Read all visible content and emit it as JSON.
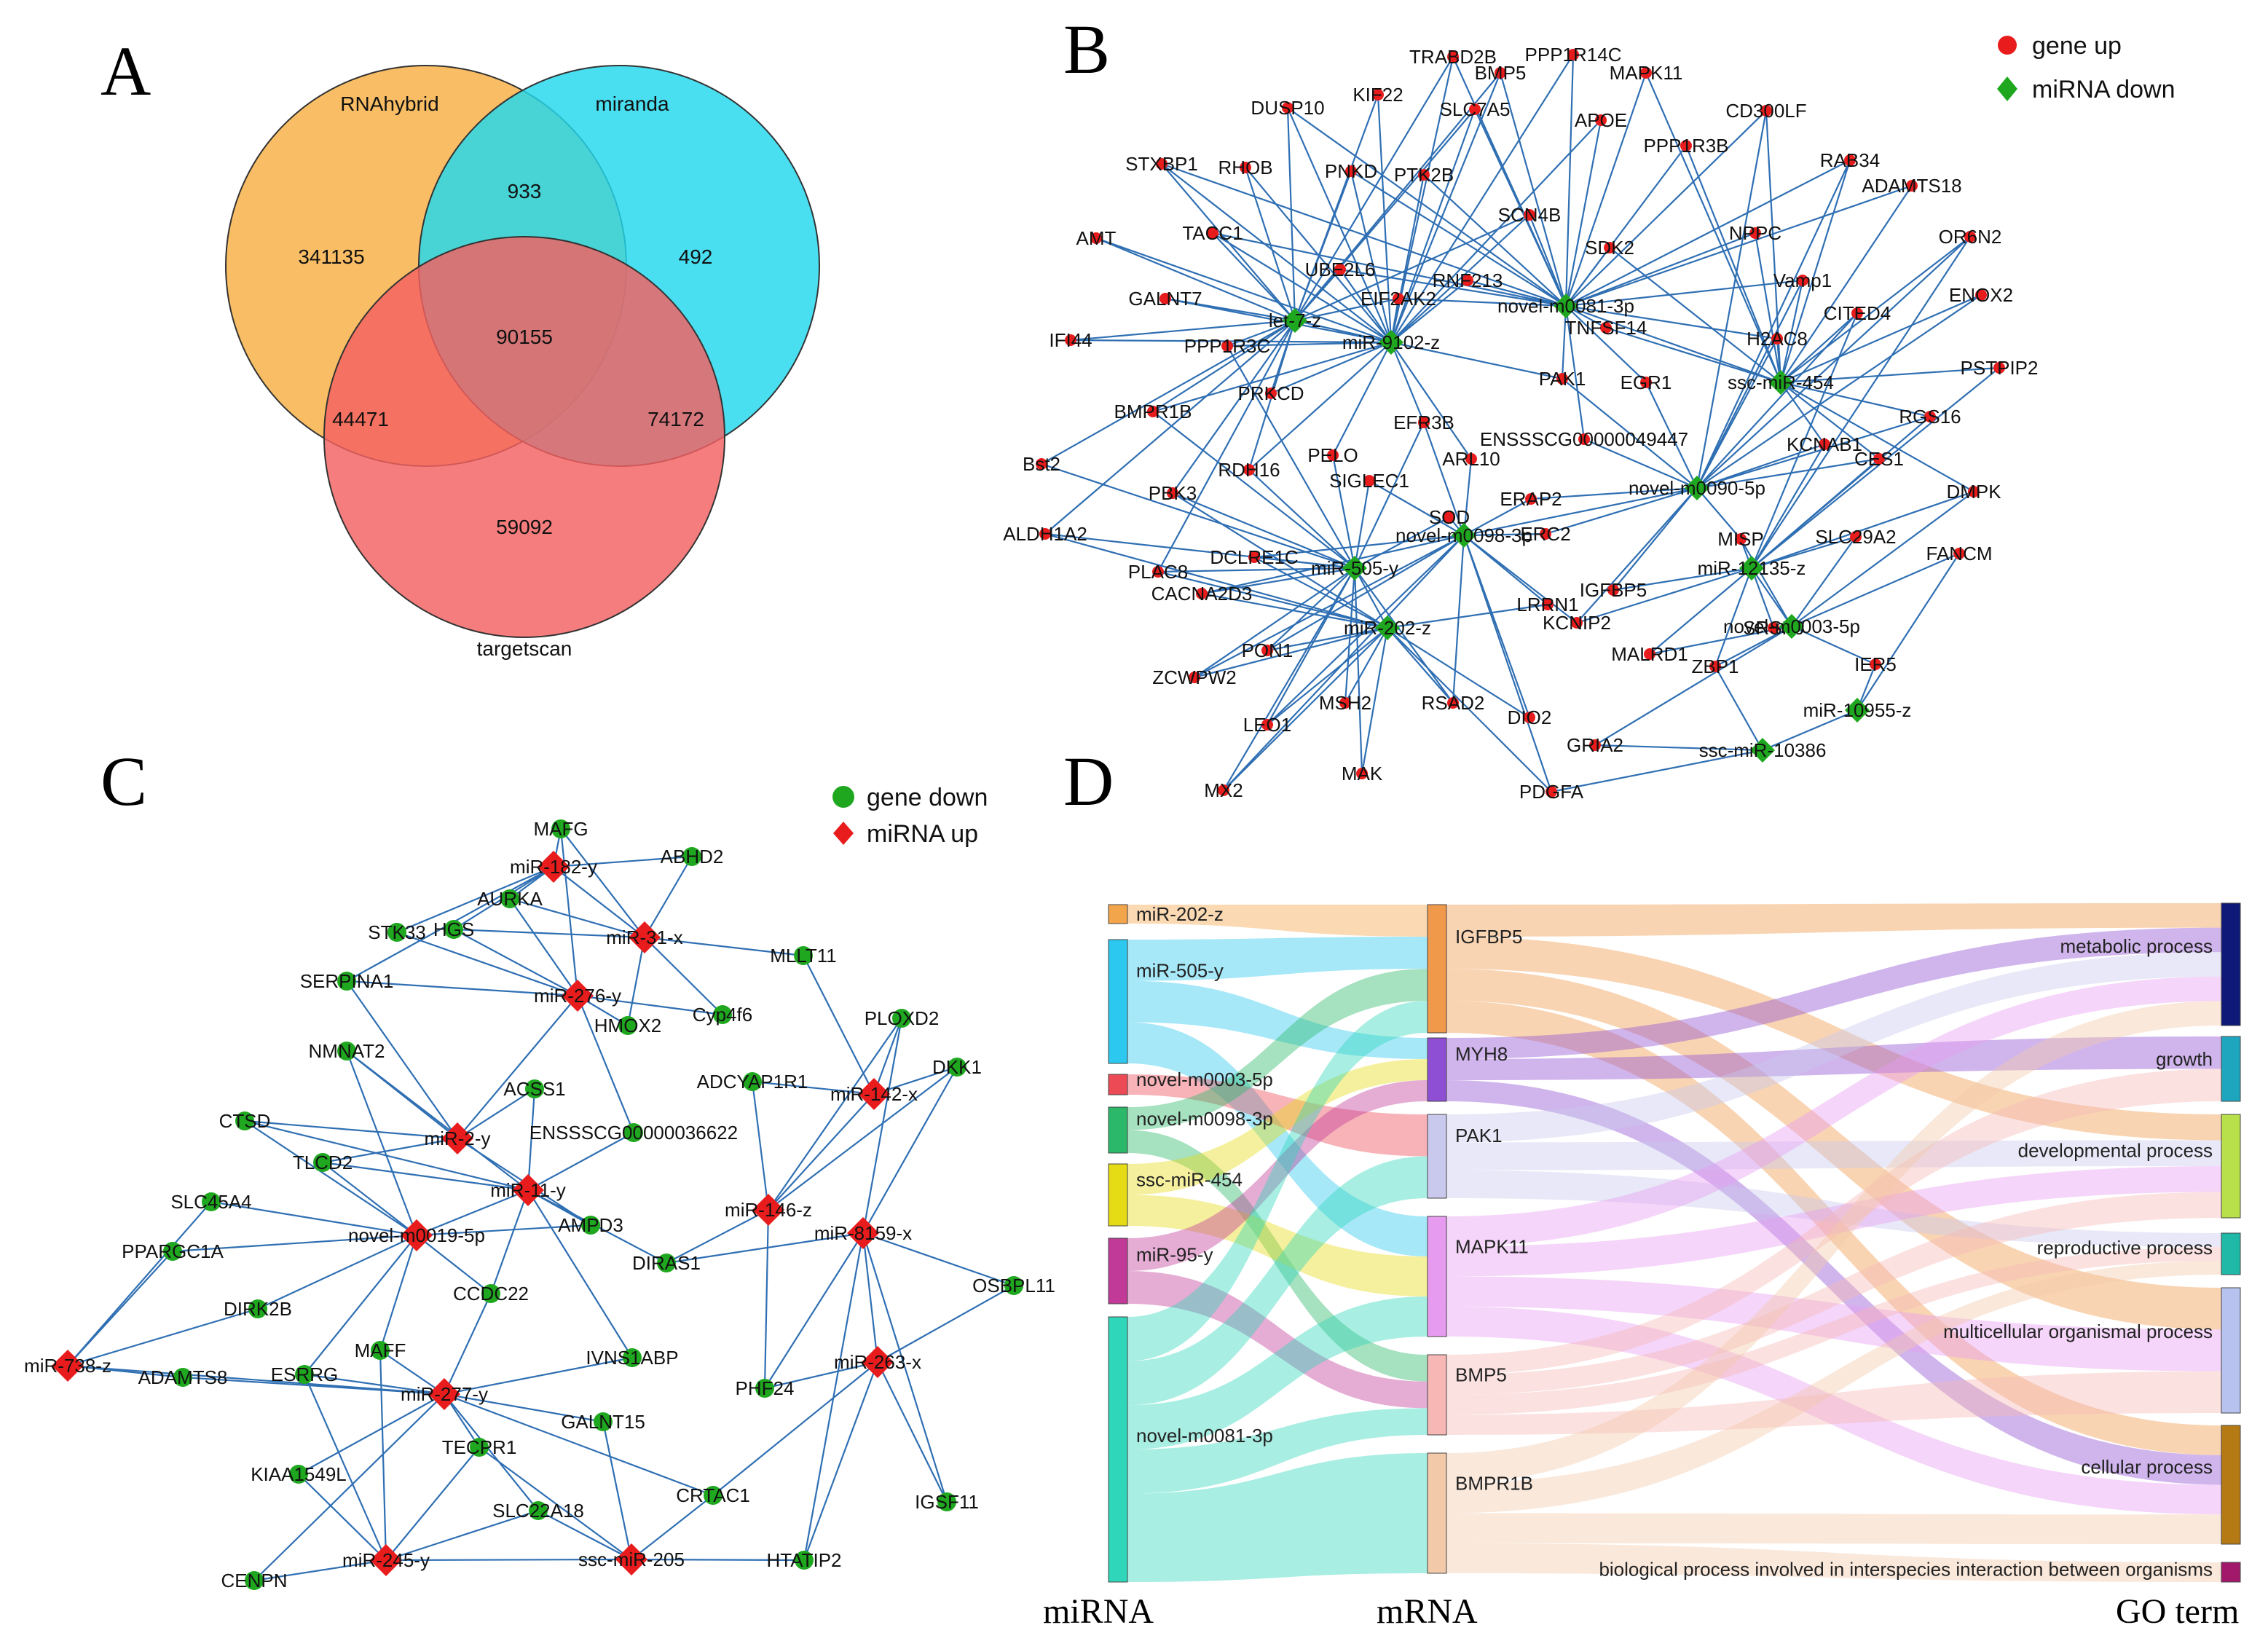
{
  "panels": {
    "a": "A",
    "b": "B",
    "c": "C",
    "d": "D"
  },
  "colors": {
    "edge": "#2f6fb3",
    "red": "#e81c1c",
    "green": "#1fa81f"
  },
  "venn": {
    "sets": [
      {
        "name": "RNAhybrid",
        "color": "#f8b043"
      },
      {
        "name": "miranda",
        "color": "#21d8ee"
      },
      {
        "name": "targetscan",
        "color": "#f46060"
      }
    ],
    "counts": {
      "rnahybrid_only": "341135",
      "miranda_only": "492",
      "targetscan_only": "59092",
      "rnahybrid_miranda": "933",
      "rnahybrid_targetscan": "44471",
      "miranda_targetscan": "74172",
      "all_three": "90155"
    }
  },
  "network_b": {
    "legend": [
      {
        "label": "gene up",
        "shape": "circle",
        "color": "#e81c1c"
      },
      {
        "label": "miRNA down",
        "shape": "diamond",
        "color": "#1fa81f"
      }
    ],
    "hubs": [
      "let-7-z",
      "miR-9102-z",
      "novel-m0081-3p",
      "ssc-miR-454",
      "novel-m0090-5p",
      "novel-m0098-3p",
      "miR-505-y",
      "miR-202-z",
      "miR-12135-z",
      "novel-m0003-5p",
      "miR-10955-z",
      "ssc-miR-10386"
    ],
    "genes": [
      "TRABD2B",
      "PPP1R14C",
      "BMP5",
      "MAPK11",
      "DUSP10",
      "KIF22",
      "SLC7A5",
      "APOE",
      "CD300LF",
      "PPP1R3B",
      "STXBP1",
      "RHOB",
      "PNKD",
      "PTK2B",
      "RAB34",
      "ADAMTS18",
      "SCN4B",
      "NPPC",
      "OR6N2",
      "AMT",
      "TACC1",
      "SDK2",
      "Vamp1",
      "ENOX2",
      "UBE2L6",
      "RNF213",
      "CITED4",
      "GALNT7",
      "EIF2AK2",
      "TNFSF14",
      "H2AC8",
      "IFI44",
      "PPP1R3C",
      "PSTPIP2",
      "BMPR1B",
      "PRKCD",
      "PAK1",
      "EGR1",
      "RGS16",
      "PELO",
      "EFR3B",
      "ENSSSCG00000049447",
      "KCNAB1",
      "Bst2",
      "RDH16",
      "ARL10",
      "CES1",
      "SIGLEC1",
      "PBK3",
      "ERAP2",
      "DMPK",
      "SOD",
      "ALDH1A2",
      "ERC2",
      "MISP",
      "SLC29A2",
      "DCLRE1C",
      "FANCM",
      "PLAC8",
      "IGFBP5",
      "CACNA2D3",
      "LRRN1",
      "KCNIP2",
      "SRSF6",
      "PON1",
      "MALRD1",
      "ZBP1",
      "IER5",
      "ZCWPW2",
      "MSH2",
      "RSAD2",
      "DIO2",
      "LEO1",
      "GRIA2",
      "MX2",
      "MAK",
      "PDGFA"
    ]
  },
  "network_c": {
    "legend": [
      {
        "label": "gene down",
        "shape": "circle",
        "color": "#1fa81f"
      },
      {
        "label": "miRNA up",
        "shape": "diamond",
        "color": "#e81c1c"
      }
    ],
    "hubs": [
      "miR-182-y",
      "miR-31-x",
      "miR-276-y",
      "miR-2-y",
      "miR-11-y",
      "novel-m0019-5p",
      "miR-142-x",
      "miR-146-z",
      "miR-8159-x",
      "miR-263-x",
      "miR-277-y",
      "miR-738-z",
      "miR-245-y",
      "ssc-miR-205"
    ],
    "genes": [
      "MAFG",
      "ABHD2",
      "AURKA",
      "STK33",
      "HGS",
      "MLLT11",
      "SERPINA1",
      "Cyp4f6",
      "PLOXD2",
      "HMOX2",
      "NMNAT2",
      "ACSS1",
      "DKK1",
      "ADCYAP1R1",
      "CTSD",
      "ENSSSCG00000036622",
      "TLCD2",
      "SLC45A4",
      "AMPD3",
      "PPARGC1A",
      "DIRAS1",
      "OSBPL11",
      "CCDC22",
      "DIRK2B",
      "MAFF",
      "IVNS1ABP",
      "PHF24",
      "ADAMTS8",
      "ESRRG",
      "GALNT15",
      "TECPR1",
      "KIAA1549L",
      "CRTAC1",
      "IGSF11",
      "SLC22A18",
      "CENPN",
      "HTATIP2"
    ]
  },
  "sankey": {
    "axis_labels": {
      "left": "miRNA",
      "middle": "mRNA",
      "right": "GO term"
    },
    "mirna": [
      {
        "label": "miR-202-z",
        "color": "#f2a54a"
      },
      {
        "label": "miR-505-y",
        "color": "#2cc8ef"
      },
      {
        "label": "novel-m0003-5p",
        "color": "#ec4a55"
      },
      {
        "label": "novel-m0098-3p",
        "color": "#2bb86a"
      },
      {
        "label": "ssc-miR-454",
        "color": "#e6dc16"
      },
      {
        "label": "miR-95-y",
        "color": "#c13a98"
      },
      {
        "label": "novel-m0081-3p",
        "color": "#2fd6b9"
      }
    ],
    "mrna": [
      {
        "label": "IGFBP5",
        "color": "#f0994a"
      },
      {
        "label": "MYH8",
        "color": "#8e4fd4"
      },
      {
        "label": "PAK1",
        "color": "#c9c9ee"
      },
      {
        "label": "MAPK11",
        "color": "#e79bf0"
      },
      {
        "label": "BMP5",
        "color": "#f6b7b5"
      },
      {
        "label": "BMPR1B",
        "color": "#f2c9a9"
      }
    ],
    "go": [
      {
        "label": "metabolic process",
        "color": "#0f1a78"
      },
      {
        "label": "growth",
        "color": "#1fa6bf"
      },
      {
        "label": "developmental process",
        "color": "#b7e04a"
      },
      {
        "label": "reproductive process",
        "color": "#20b8a7"
      },
      {
        "label": "multicellular organismal process",
        "color": "#b7c2ee"
      },
      {
        "label": "cellular process",
        "color": "#b57a14"
      },
      {
        "label": "biological process involved in interspecies interaction between organisms",
        "color": "#a2186b"
      }
    ]
  }
}
